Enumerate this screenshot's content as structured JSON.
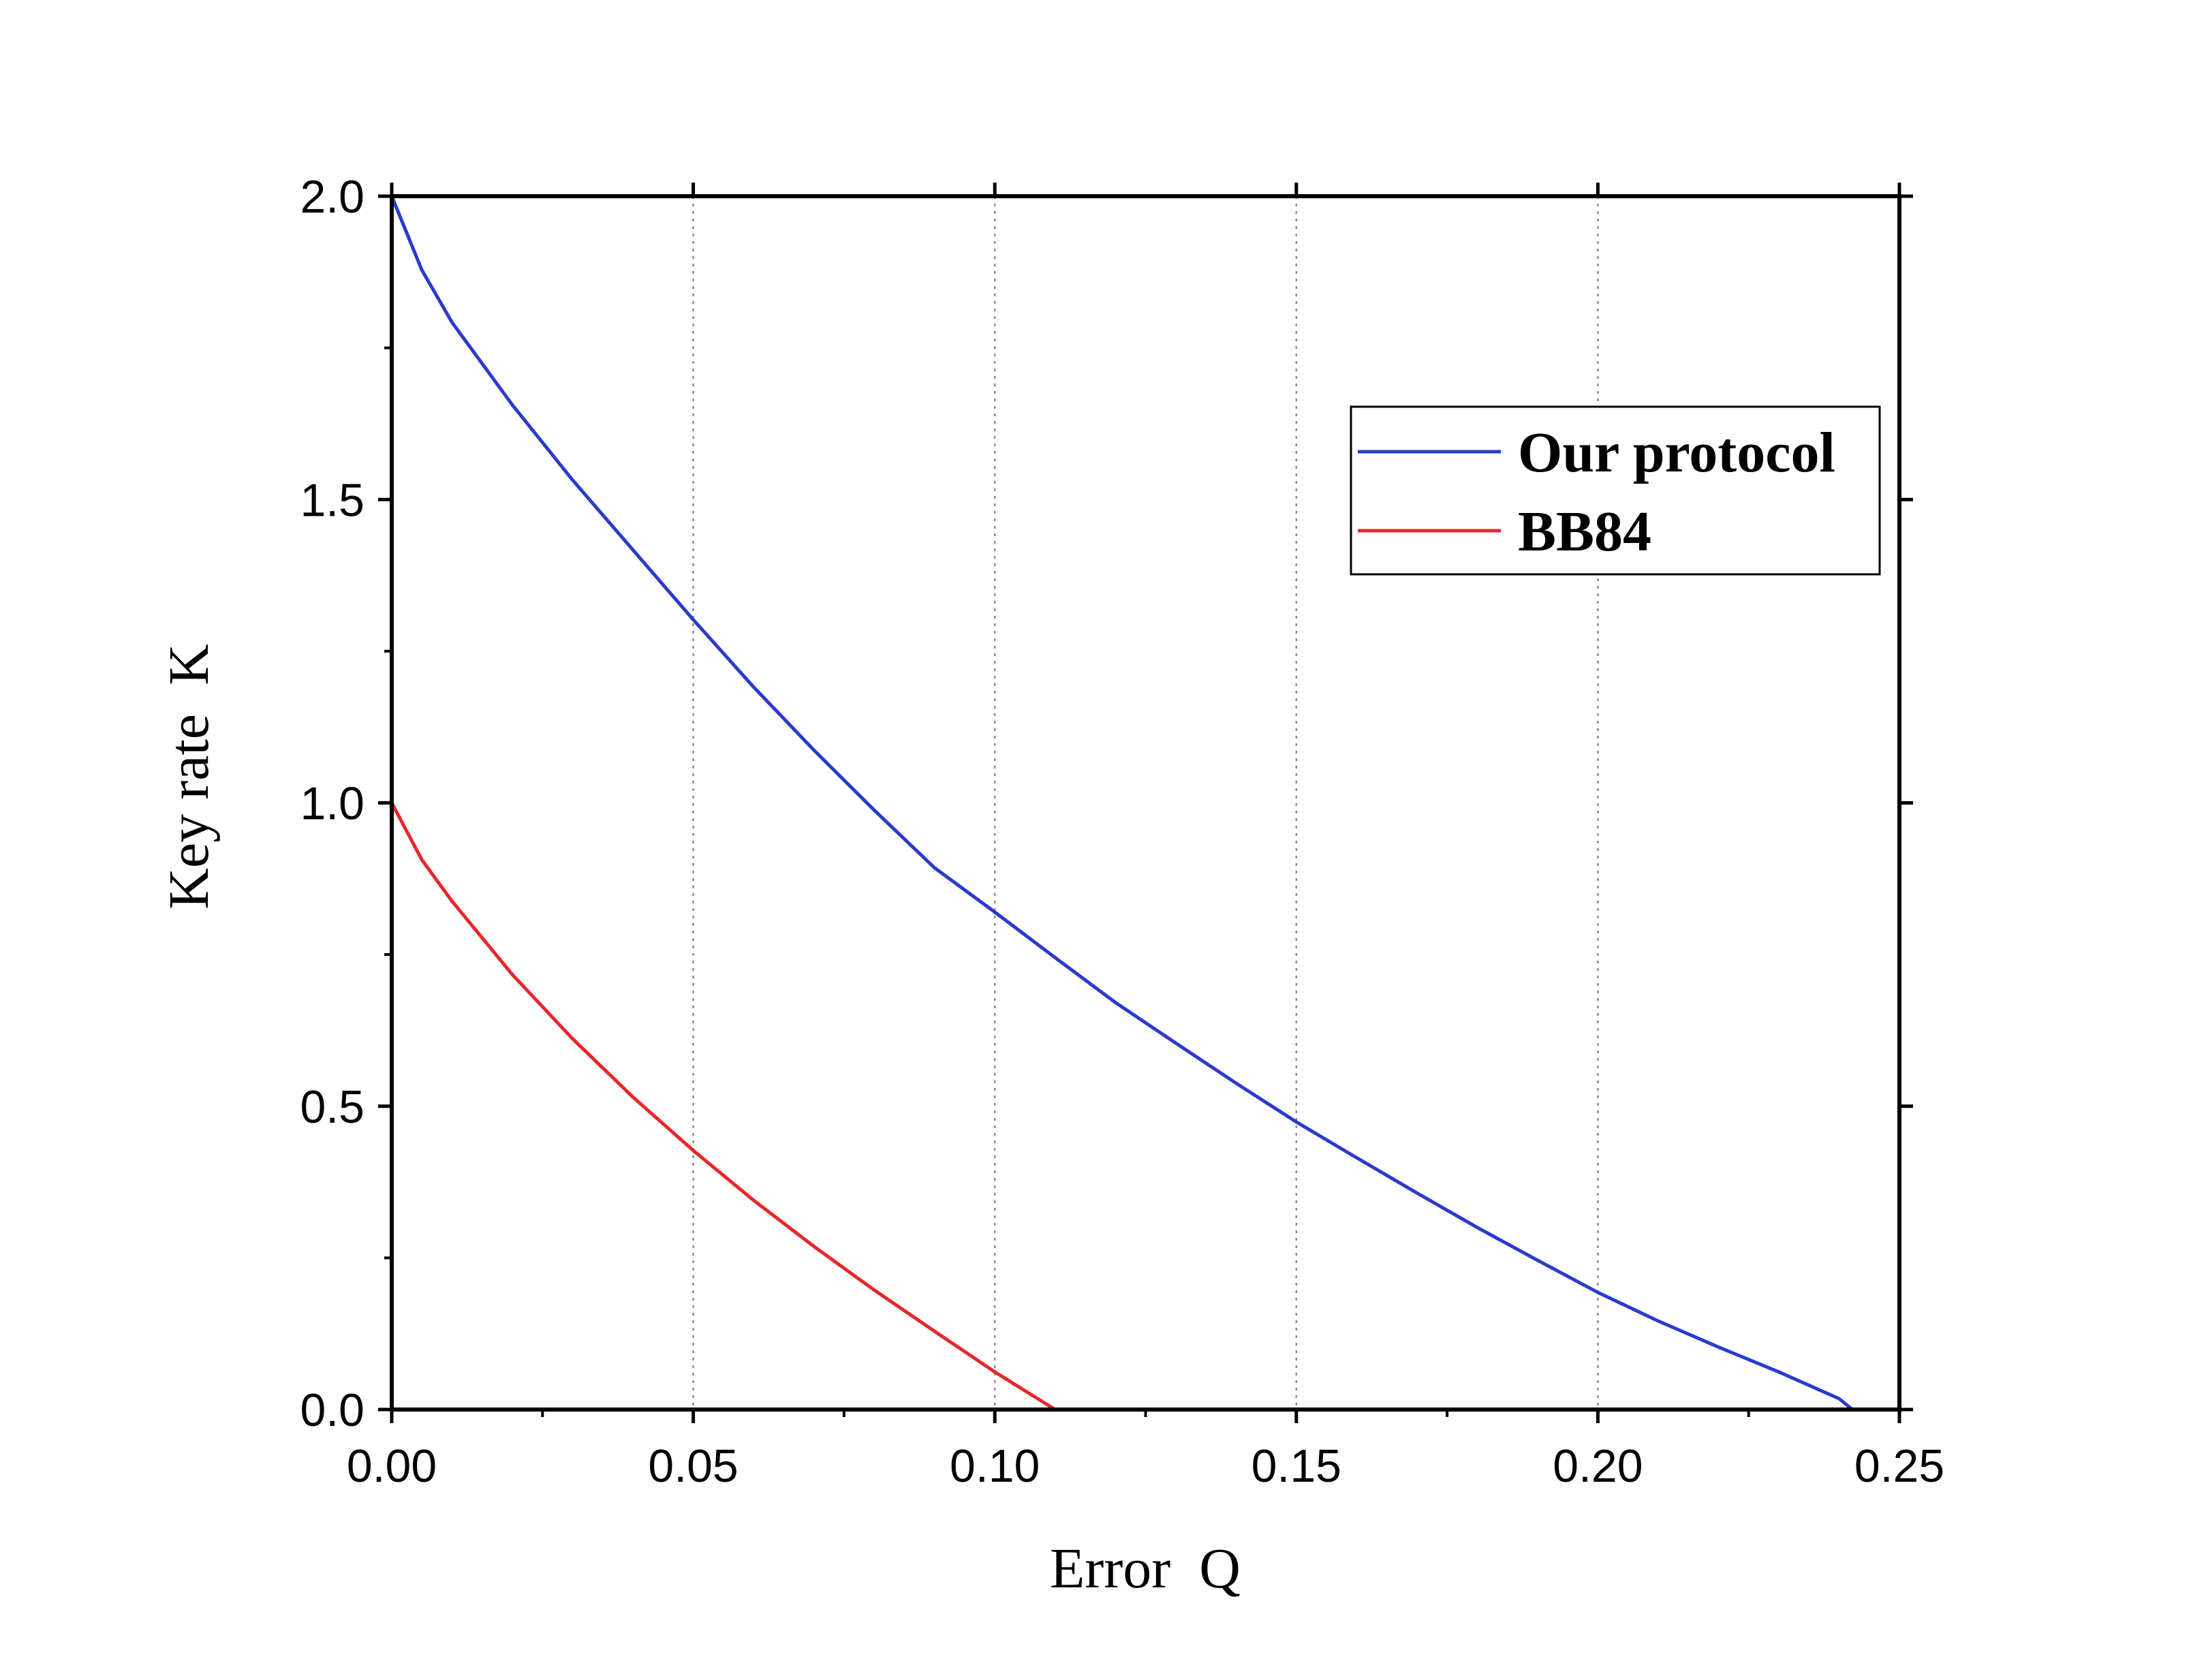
{
  "chart_data": {
    "type": "line",
    "title": "",
    "xlabel": "Error  Q",
    "ylabel": "Key rate  K",
    "xlim": [
      0,
      0.25
    ],
    "ylim": [
      0,
      2.0
    ],
    "x_ticks": [
      "0.00",
      "0.05",
      "0.10",
      "0.15",
      "0.20",
      "0.25"
    ],
    "y_ticks": [
      "0.0",
      "0.5",
      "1.0",
      "1.5",
      "2.0"
    ],
    "x_tick_values": [
      0,
      0.05,
      0.1,
      0.15,
      0.2,
      0.25
    ],
    "y_tick_values": [
      0,
      0.5,
      1.0,
      1.5,
      2.0
    ],
    "x_minor_tick_values": [
      0.025,
      0.075,
      0.125,
      0.175,
      0.225
    ],
    "y_minor_tick_values": [
      0.25,
      0.75,
      1.25,
      1.75
    ],
    "grid": "vertical dotted at major x ticks",
    "legend_position": "top-right",
    "series": [
      {
        "name": "Our protocol",
        "color": "#2a3bcc",
        "x": [
          0,
          0.005,
          0.01,
          0.02,
          0.03,
          0.04,
          0.05,
          0.06,
          0.07,
          0.08,
          0.09,
          0.1,
          0.11,
          0.12,
          0.13,
          0.14,
          0.15,
          0.16,
          0.17,
          0.18,
          0.19,
          0.2,
          0.21,
          0.22,
          0.23,
          0.24,
          0.2422
        ],
        "y": [
          2.0,
          1.878,
          1.792,
          1.656,
          1.532,
          1.417,
          1.302,
          1.191,
          1.087,
          0.988,
          0.893,
          0.82,
          0.745,
          0.671,
          0.604,
          0.538,
          0.474,
          0.415,
          0.357,
          0.3,
          0.246,
          0.193,
          0.146,
          0.103,
          0.062,
          0.018,
          0.0
        ]
      },
      {
        "name": "BB84",
        "color": "#e8272a",
        "x": [
          0,
          0.005,
          0.01,
          0.02,
          0.03,
          0.04,
          0.05,
          0.06,
          0.07,
          0.08,
          0.09,
          0.1,
          0.11
        ],
        "y": [
          1.0,
          0.906,
          0.838,
          0.717,
          0.611,
          0.515,
          0.427,
          0.345,
          0.269,
          0.197,
          0.129,
          0.062,
          0.0
        ]
      }
    ]
  }
}
